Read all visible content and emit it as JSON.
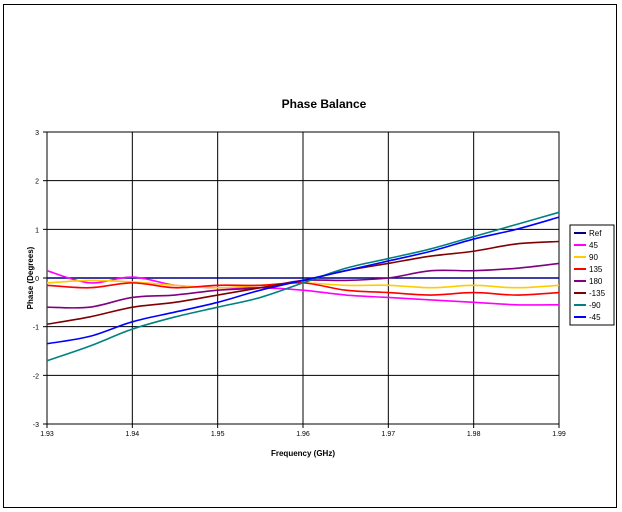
{
  "chart_data": {
    "type": "line",
    "title": "Phase Balance",
    "xlabel": "Frequency (GHz)",
    "ylabel": "Phase (Degrees)",
    "xlim": [
      1.93,
      1.99
    ],
    "ylim": [
      -3,
      3
    ],
    "x_ticks": [
      "1.93",
      "1.94",
      "1.95",
      "1.96",
      "1.97",
      "1.98",
      "1.99"
    ],
    "y_ticks": [
      "-3",
      "-2",
      "-1",
      "0",
      "1",
      "2",
      "3"
    ],
    "grid": true,
    "legend_position": "right",
    "x": [
      1.93,
      1.935,
      1.94,
      1.945,
      1.95,
      1.955,
      1.96,
      1.965,
      1.97,
      1.975,
      1.98,
      1.985,
      1.99
    ],
    "series": [
      {
        "name": "Ref",
        "color": "#000080",
        "values": [
          0,
          0,
          0,
          0,
          0,
          0,
          0,
          0,
          0,
          0,
          0,
          0,
          0
        ]
      },
      {
        "name": "45",
        "color": "#ff00ff",
        "values": [
          0.15,
          -0.1,
          0.02,
          -0.15,
          -0.2,
          -0.2,
          -0.25,
          -0.35,
          -0.4,
          -0.45,
          -0.5,
          -0.55,
          -0.55
        ]
      },
      {
        "name": "90",
        "color": "#ffcc00",
        "values": [
          -0.1,
          -0.05,
          -0.08,
          -0.15,
          -0.2,
          -0.15,
          -0.1,
          -0.15,
          -0.15,
          -0.2,
          -0.15,
          -0.2,
          -0.15
        ]
      },
      {
        "name": "135",
        "color": "#ff0000",
        "values": [
          -0.15,
          -0.2,
          -0.1,
          -0.2,
          -0.15,
          -0.15,
          -0.1,
          -0.25,
          -0.3,
          -0.35,
          -0.3,
          -0.35,
          -0.3
        ]
      },
      {
        "name": "180",
        "color": "#800080",
        "values": [
          -0.6,
          -0.6,
          -0.4,
          -0.35,
          -0.25,
          -0.2,
          -0.05,
          -0.05,
          0.0,
          0.15,
          0.15,
          0.2,
          0.3
        ]
      },
      {
        "name": "-135",
        "color": "#800000",
        "values": [
          -0.95,
          -0.8,
          -0.6,
          -0.5,
          -0.35,
          -0.2,
          -0.05,
          0.15,
          0.3,
          0.45,
          0.55,
          0.7,
          0.75
        ]
      },
      {
        "name": "-90",
        "color": "#008080",
        "values": [
          -1.7,
          -1.4,
          -1.05,
          -0.8,
          -0.6,
          -0.4,
          -0.1,
          0.2,
          0.4,
          0.6,
          0.85,
          1.1,
          1.35
        ]
      },
      {
        "name": "-45",
        "color": "#0000ff",
        "values": [
          -1.35,
          -1.2,
          -0.9,
          -0.7,
          -0.5,
          -0.25,
          -0.05,
          0.15,
          0.35,
          0.55,
          0.8,
          1.0,
          1.25
        ]
      }
    ]
  }
}
